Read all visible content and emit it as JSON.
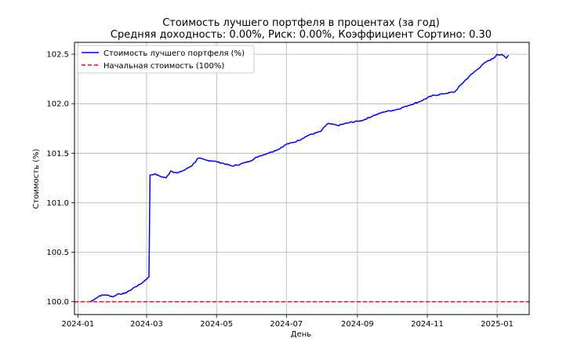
{
  "chart_data": {
    "type": "line",
    "title": "Стоимость лучшего портфеля в процентах (за год)",
    "subtitle": "Средняя доходность: 0.00%, Риск: 0.00%, Коэффициент Сортино: 0.30",
    "xlabel": "День",
    "ylabel": "Стоимость (%)",
    "xlim": [
      "2023-12-29",
      "2025-01-29"
    ],
    "ylim": [
      99.87,
      102.62
    ],
    "x_ticks": [
      "2024-01",
      "2024-03",
      "2024-05",
      "2024-07",
      "2024-09",
      "2024-11",
      "2025-01"
    ],
    "y_ticks": [
      100.0,
      100.5,
      101.0,
      101.5,
      102.0,
      102.5
    ],
    "grid": true,
    "legend_position": "top-left",
    "series": [
      {
        "name": "Стоимость лучшего портфеля (%)",
        "color": "#0000ff",
        "style": "solid",
        "points": [
          [
            "2024-01-12",
            100.0
          ],
          [
            "2024-01-16",
            100.03
          ],
          [
            "2024-01-20",
            100.06
          ],
          [
            "2024-01-25",
            100.07
          ],
          [
            "2024-02-01",
            100.05
          ],
          [
            "2024-02-05",
            100.08
          ],
          [
            "2024-02-10",
            100.08
          ],
          [
            "2024-02-15",
            100.11
          ],
          [
            "2024-02-20",
            100.15
          ],
          [
            "2024-02-25",
            100.18
          ],
          [
            "2024-02-29",
            100.22
          ],
          [
            "2024-03-03",
            100.25
          ],
          [
            "2024-03-04",
            101.28
          ],
          [
            "2024-03-08",
            101.29
          ],
          [
            "2024-03-12",
            101.27
          ],
          [
            "2024-03-18",
            101.25
          ],
          [
            "2024-03-22",
            101.32
          ],
          [
            "2024-03-28",
            101.3
          ],
          [
            "2024-04-03",
            101.33
          ],
          [
            "2024-04-10",
            101.38
          ],
          [
            "2024-04-15",
            101.45
          ],
          [
            "2024-04-22",
            101.43
          ],
          [
            "2024-04-29",
            101.42
          ],
          [
            "2024-05-06",
            101.4
          ],
          [
            "2024-05-15",
            101.37
          ],
          [
            "2024-05-22",
            101.39
          ],
          [
            "2024-05-30",
            101.42
          ],
          [
            "2024-06-07",
            101.47
          ],
          [
            "2024-06-15",
            101.5
          ],
          [
            "2024-06-24",
            101.54
          ],
          [
            "2024-07-01",
            101.59
          ],
          [
            "2024-07-10",
            101.62
          ],
          [
            "2024-07-20",
            101.68
          ],
          [
            "2024-07-31",
            101.72
          ],
          [
            "2024-08-06",
            101.8
          ],
          [
            "2024-08-15",
            101.78
          ],
          [
            "2024-08-25",
            101.81
          ],
          [
            "2024-09-05",
            101.83
          ],
          [
            "2024-09-15",
            101.88
          ],
          [
            "2024-09-25",
            101.92
          ],
          [
            "2024-10-05",
            101.94
          ],
          [
            "2024-10-15",
            101.98
          ],
          [
            "2024-10-25",
            102.02
          ],
          [
            "2024-11-05",
            102.08
          ],
          [
            "2024-11-15",
            102.1
          ],
          [
            "2024-11-25",
            102.12
          ],
          [
            "2024-12-01",
            102.2
          ],
          [
            "2024-12-08",
            102.28
          ],
          [
            "2024-12-15",
            102.35
          ],
          [
            "2024-12-22",
            102.42
          ],
          [
            "2024-12-29",
            102.46
          ],
          [
            "2025-01-01",
            102.5
          ],
          [
            "2025-01-06",
            102.49
          ],
          [
            "2025-01-09",
            102.46
          ],
          [
            "2025-01-11",
            102.49
          ]
        ]
      },
      {
        "name": "Начальная стоимость (100%)",
        "color": "#ff0000",
        "style": "dashed",
        "y_constant": 100.0
      }
    ]
  }
}
